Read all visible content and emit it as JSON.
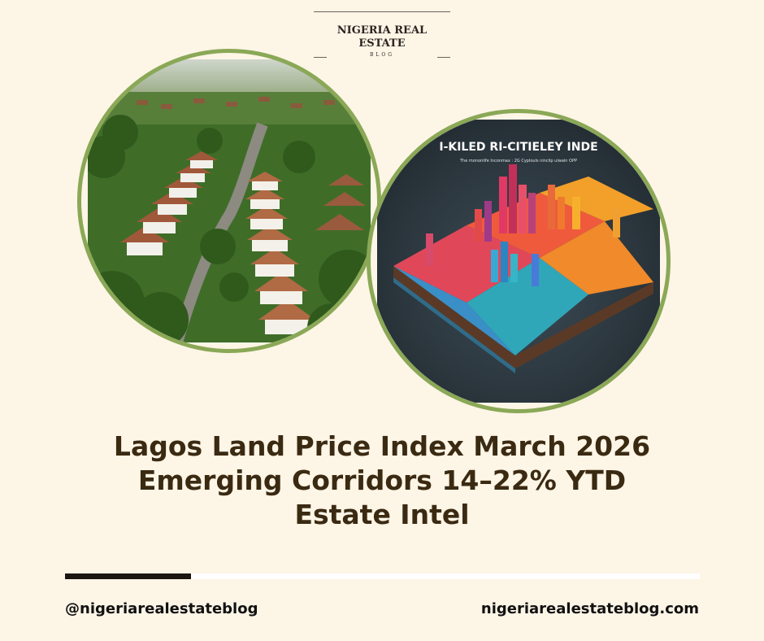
{
  "logo": {
    "line1": "NIGERIA REAL",
    "line2": "ESTATE",
    "line3": "BLOG"
  },
  "photo_left": {
    "description_icon": "aerial-estate-photo-icon"
  },
  "photo_right": {
    "title": "I-KILED RI-CITIELEY INDE",
    "subtitle": "The mononlife lnconmax : 2G Cyplouls ninclip ulwain OPP"
  },
  "headline": {
    "line1": "Lagos Land Price Index March 2026",
    "line2": "Emerging Corridors 14–22% YTD",
    "line3": "Estate Intel"
  },
  "footer": {
    "handle": "@nigeriarealestateblog",
    "website": "nigeriarealestateblog.com"
  },
  "colors": {
    "background": "#fdf5e6",
    "ring": "#8aa856",
    "headline": "#3b2a12",
    "progress_dark": "#1c1510"
  }
}
